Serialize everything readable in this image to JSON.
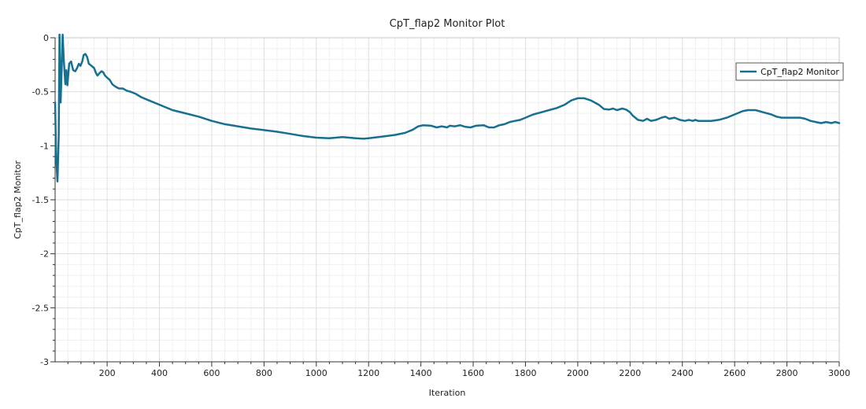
{
  "chart_data": {
    "type": "line",
    "title": "CpT_flap2 Monitor Plot",
    "xlabel": "Iteration",
    "ylabel": "CpT_flap2 Monitor",
    "xlim": [
      1,
      3000
    ],
    "ylim": [
      -3,
      0
    ],
    "x_ticks": [
      200,
      400,
      600,
      800,
      1000,
      1200,
      1400,
      1600,
      1800,
      2000,
      2200,
      2400,
      2600,
      2800,
      3000
    ],
    "y_ticks": [
      0,
      -0.5,
      -1,
      -1.5,
      -2,
      -2.5,
      -3
    ],
    "x_tick_labels": [
      "200",
      "400",
      "600",
      "800",
      "1000",
      "1200",
      "1400",
      "1600",
      "1800",
      "2000",
      "2200",
      "2400",
      "2600",
      "2800",
      "3000"
    ],
    "y_tick_labels": [
      "0",
      "-0.5",
      "-1",
      "-1.5",
      "-2",
      "-2.5",
      "-3"
    ],
    "grid": true,
    "legend_position": "top-right",
    "series": [
      {
        "name": "CpT_flap2 Monitor",
        "color": "#17708f",
        "points": [
          [
            1,
            -0.6
          ],
          [
            5,
            -1.1
          ],
          [
            10,
            -1.33
          ],
          [
            15,
            -0.9
          ],
          [
            18,
            0.2
          ],
          [
            22,
            -0.6
          ],
          [
            26,
            -0.3
          ],
          [
            30,
            0.05
          ],
          [
            34,
            -0.2
          ],
          [
            40,
            -0.43
          ],
          [
            44,
            -0.3
          ],
          [
            48,
            -0.44
          ],
          [
            55,
            -0.24
          ],
          [
            62,
            -0.22
          ],
          [
            70,
            -0.3
          ],
          [
            78,
            -0.31
          ],
          [
            85,
            -0.28
          ],
          [
            92,
            -0.24
          ],
          [
            98,
            -0.26
          ],
          [
            105,
            -0.22
          ],
          [
            110,
            -0.16
          ],
          [
            117,
            -0.15
          ],
          [
            124,
            -0.18
          ],
          [
            130,
            -0.24
          ],
          [
            140,
            -0.26
          ],
          [
            150,
            -0.28
          ],
          [
            158,
            -0.33
          ],
          [
            163,
            -0.35
          ],
          [
            170,
            -0.33
          ],
          [
            178,
            -0.31
          ],
          [
            185,
            -0.32
          ],
          [
            192,
            -0.35
          ],
          [
            200,
            -0.37
          ],
          [
            210,
            -0.39
          ],
          [
            220,
            -0.43
          ],
          [
            230,
            -0.45
          ],
          [
            245,
            -0.47
          ],
          [
            260,
            -0.47
          ],
          [
            275,
            -0.49
          ],
          [
            290,
            -0.5
          ],
          [
            310,
            -0.52
          ],
          [
            330,
            -0.55
          ],
          [
            360,
            -0.58
          ],
          [
            400,
            -0.62
          ],
          [
            450,
            -0.67
          ],
          [
            500,
            -0.7
          ],
          [
            550,
            -0.73
          ],
          [
            600,
            -0.77
          ],
          [
            650,
            -0.8
          ],
          [
            700,
            -0.82
          ],
          [
            750,
            -0.84
          ],
          [
            800,
            -0.855
          ],
          [
            850,
            -0.87
          ],
          [
            900,
            -0.89
          ],
          [
            950,
            -0.91
          ],
          [
            1000,
            -0.925
          ],
          [
            1050,
            -0.93
          ],
          [
            1100,
            -0.92
          ],
          [
            1150,
            -0.93
          ],
          [
            1180,
            -0.935
          ],
          [
            1200,
            -0.93
          ],
          [
            1250,
            -0.915
          ],
          [
            1300,
            -0.9
          ],
          [
            1340,
            -0.88
          ],
          [
            1370,
            -0.85
          ],
          [
            1390,
            -0.82
          ],
          [
            1410,
            -0.81
          ],
          [
            1440,
            -0.815
          ],
          [
            1460,
            -0.83
          ],
          [
            1480,
            -0.82
          ],
          [
            1500,
            -0.83
          ],
          [
            1510,
            -0.815
          ],
          [
            1530,
            -0.82
          ],
          [
            1550,
            -0.81
          ],
          [
            1570,
            -0.825
          ],
          [
            1590,
            -0.83
          ],
          [
            1610,
            -0.815
          ],
          [
            1640,
            -0.81
          ],
          [
            1660,
            -0.83
          ],
          [
            1680,
            -0.83
          ],
          [
            1700,
            -0.81
          ],
          [
            1720,
            -0.8
          ],
          [
            1740,
            -0.78
          ],
          [
            1760,
            -0.77
          ],
          [
            1780,
            -0.76
          ],
          [
            1800,
            -0.74
          ],
          [
            1830,
            -0.71
          ],
          [
            1860,
            -0.69
          ],
          [
            1890,
            -0.67
          ],
          [
            1920,
            -0.65
          ],
          [
            1950,
            -0.62
          ],
          [
            1975,
            -0.58
          ],
          [
            2000,
            -0.56
          ],
          [
            2025,
            -0.56
          ],
          [
            2050,
            -0.58
          ],
          [
            2080,
            -0.62
          ],
          [
            2100,
            -0.66
          ],
          [
            2120,
            -0.665
          ],
          [
            2135,
            -0.655
          ],
          [
            2150,
            -0.67
          ],
          [
            2170,
            -0.655
          ],
          [
            2185,
            -0.665
          ],
          [
            2200,
            -0.69
          ],
          [
            2210,
            -0.72
          ],
          [
            2230,
            -0.76
          ],
          [
            2250,
            -0.77
          ],
          [
            2265,
            -0.75
          ],
          [
            2280,
            -0.77
          ],
          [
            2300,
            -0.76
          ],
          [
            2320,
            -0.74
          ],
          [
            2335,
            -0.73
          ],
          [
            2350,
            -0.75
          ],
          [
            2370,
            -0.74
          ],
          [
            2390,
            -0.76
          ],
          [
            2410,
            -0.77
          ],
          [
            2425,
            -0.76
          ],
          [
            2440,
            -0.77
          ],
          [
            2450,
            -0.76
          ],
          [
            2460,
            -0.77
          ],
          [
            2480,
            -0.77
          ],
          [
            2510,
            -0.77
          ],
          [
            2540,
            -0.76
          ],
          [
            2570,
            -0.74
          ],
          [
            2600,
            -0.71
          ],
          [
            2630,
            -0.68
          ],
          [
            2650,
            -0.67
          ],
          [
            2680,
            -0.67
          ],
          [
            2710,
            -0.69
          ],
          [
            2740,
            -0.71
          ],
          [
            2760,
            -0.73
          ],
          [
            2780,
            -0.74
          ],
          [
            2800,
            -0.74
          ],
          [
            2830,
            -0.74
          ],
          [
            2850,
            -0.74
          ],
          [
            2870,
            -0.75
          ],
          [
            2890,
            -0.77
          ],
          [
            2910,
            -0.78
          ],
          [
            2930,
            -0.79
          ],
          [
            2950,
            -0.78
          ],
          [
            2970,
            -0.79
          ],
          [
            2985,
            -0.78
          ],
          [
            3000,
            -0.79
          ]
        ]
      }
    ]
  }
}
